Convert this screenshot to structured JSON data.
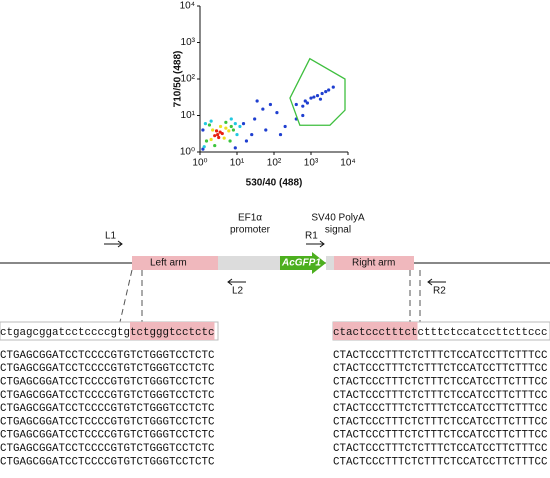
{
  "chart_data": {
    "type": "scatter",
    "xlabel": "530/40 (488)",
    "ylabel": "710/50 (488)",
    "xscale": "log",
    "yscale": "log",
    "xlim": [
      1,
      10000
    ],
    "ylim": [
      1,
      10000
    ],
    "xticks": [
      {
        "value": 1,
        "label": "10⁰"
      },
      {
        "value": 10,
        "label": "10¹"
      },
      {
        "value": 100,
        "label": "10²"
      },
      {
        "value": 1000,
        "label": "10³"
      },
      {
        "value": 10000,
        "label": "10⁴"
      }
    ],
    "yticks": [
      {
        "value": 1,
        "label": "10⁰"
      },
      {
        "value": 10,
        "label": "10¹"
      },
      {
        "value": 100,
        "label": "10²"
      },
      {
        "value": 1000,
        "label": "10³"
      },
      {
        "value": 10000,
        "label": "10⁴"
      }
    ],
    "series": [
      {
        "color": "#1f3fd0",
        "x": [
          15,
          30,
          60,
          120,
          50,
          200,
          400,
          25,
          80,
          18,
          1.2,
          1.2,
          9,
          600,
          150,
          35,
          400,
          700,
          1000,
          1500,
          2000,
          3000,
          1200,
          800,
          2500,
          600,
          1800,
          4000
        ],
        "y": [
          6,
          8,
          4,
          12,
          15,
          5,
          8,
          3,
          20,
          2,
          1.2,
          4,
          1.3,
          10,
          3,
          25,
          20,
          25,
          30,
          35,
          40,
          50,
          32,
          22,
          45,
          18,
          28,
          60
        ]
      },
      {
        "color": "#22c8e0",
        "x": [
          1.3,
          9,
          1.4,
          10,
          2,
          12,
          7
        ],
        "y": [
          1.4,
          6,
          6,
          3,
          7,
          5,
          8
        ]
      },
      {
        "color": "#3cc43c",
        "x": [
          1.5,
          7,
          1.8,
          6.5,
          8,
          2.5,
          5
        ],
        "y": [
          2,
          5,
          5.5,
          2,
          4,
          1.5,
          6.5
        ]
      },
      {
        "color": "#f0e020",
        "x": [
          2,
          5,
          2.2,
          4.5,
          6,
          3.6
        ],
        "y": [
          2.2,
          4.5,
          4,
          2.4,
          3.8,
          5
        ]
      },
      {
        "color": "#e82010",
        "x": [
          3,
          3.5,
          2.5,
          4,
          3.2,
          2.8
        ],
        "y": [
          3,
          3.5,
          2.8,
          3.2,
          2.5,
          3.8
        ]
      }
    ],
    "gate": {
      "color": "#3fbf3f",
      "x": [
        270,
        930,
        8300,
        8300,
        3250,
        500
      ],
      "y": [
        30,
        360,
        100,
        14,
        5.4,
        5.4
      ]
    }
  },
  "diagram": {
    "L1": "L1",
    "L2": "L2",
    "R1": "R1",
    "R2": "R2",
    "left_arm": "Left arm",
    "right_arm": "Right arm",
    "promoter": [
      "EF1α",
      "promoter"
    ],
    "gene": "AcGFP1",
    "polya": [
      "SV40 PolyA",
      "signal"
    ]
  },
  "alignment": {
    "left": {
      "reference": [
        "ctgagcggatcctccccgtg",
        "tctgggtcctctc"
      ],
      "reads": [
        "CTGAGCGGATCCTCCCCGTGTCTGGGTCCTCTC",
        "CTGAGCGGATCCTCCCCGTGTCTGGGTCCTCTC",
        "CTGAGCGGATCCTCCCCGTGTCTGGGTCCTCTC",
        "CTGAGCGGATCCTCCCCGTGTCTGGGTCCTCTC",
        "CTGAGCGGATCCTCCCCGTGTCTGGGTCCTCTC",
        "CTGAGCGGATCCTCCCCGTGTCTGGGTCCTCTC",
        "CTGAGCGGATCCTCCCCGTGTCTGGGTCCTCTC",
        "CTGAGCGGATCCTCCCCGTGTCTGGGTCCTCTC",
        "CTGAGCGGATCCTCCCCGTGTCTGGGTCCTCTC"
      ]
    },
    "right": {
      "reference": [
        "ctactccctttct",
        "ctttctccatccttcttccc"
      ],
      "reads": [
        "CTACTCCCTTTCTCTTTCTCCATCCTTCTTTCC",
        "CTACTCCCTTTCTCTTTCTCCATCCTTCTTTCC",
        "CTACTCCCTTTCTCTTTCTCCATCCTTCTTTCC",
        "CTACTCCCTTTCTCTTTCTCCATCCTTCTTTCC",
        "CTACTCCCTTTCTCTTTCTCCATCCTTCTTTCC",
        "CTACTCCCTTTCTCTTTCTCCATCCTTCTTTCC",
        "CTACTCCCTTTCTCTTTCTCCATCCTTCTTTCC",
        "CTACTCCCTTTCTCTTTCTCCATCCTTCTTTCC",
        "CTACTCCCTTTCTCTTTCTCCATCCTTCTTTCC"
      ]
    }
  }
}
